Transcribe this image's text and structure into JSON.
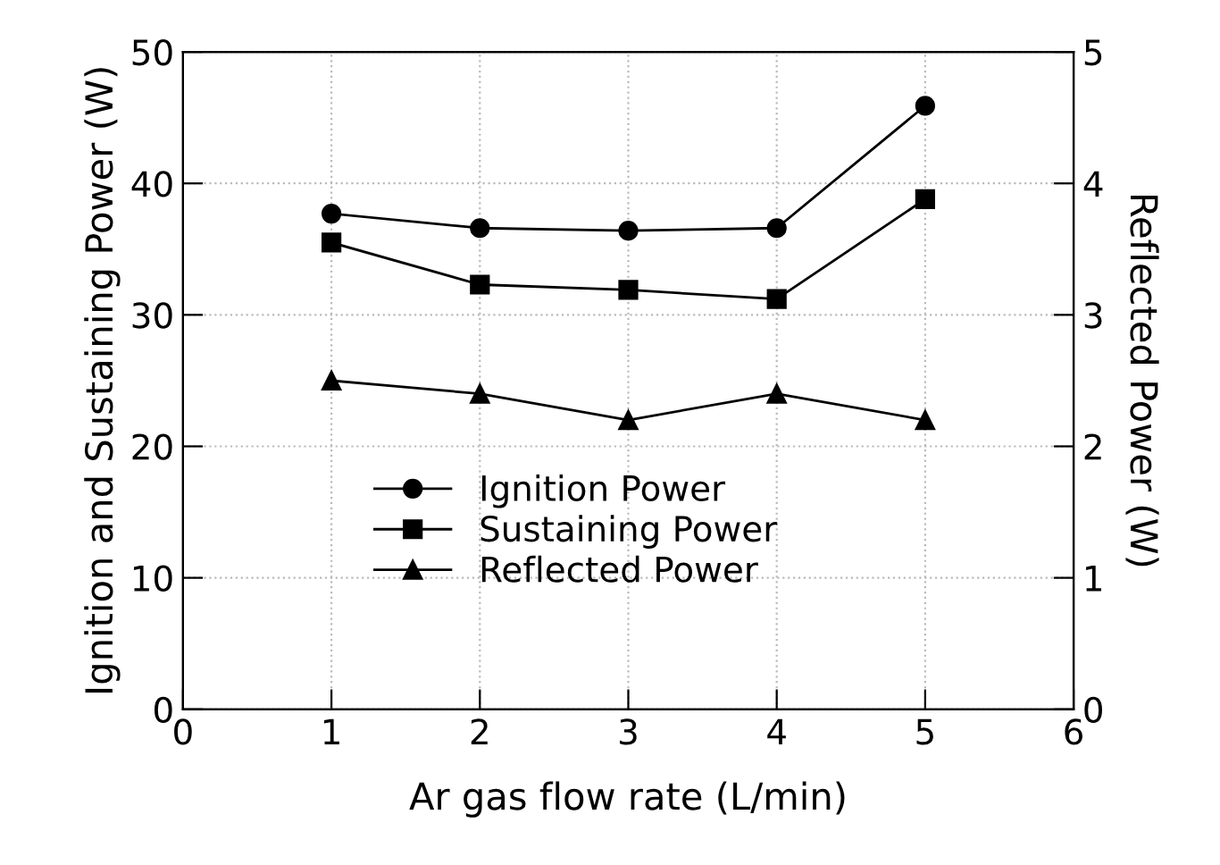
{
  "chart_data": {
    "type": "line",
    "xlabel": "Ar gas flow rate (L/min)",
    "ylabel": "Ignition and Sustaining Power (W)",
    "y2label": "Reflected Power (W)",
    "x": [
      1,
      2,
      3,
      4,
      5
    ],
    "series": [
      {
        "name": "Ignition Power",
        "color": "#000000",
        "marker": "circle",
        "values": [
          37.7,
          36.6,
          36.4,
          36.6,
          45.9
        ]
      },
      {
        "name": "Sustaining Power",
        "color": "#000000",
        "marker": "square",
        "values": [
          35.5,
          32.3,
          31.9,
          31.2,
          38.8
        ]
      },
      {
        "name": "Reflected Power",
        "color": "#000000",
        "marker": "triangle",
        "axis": "y2",
        "values": [
          2.5,
          2.4,
          2.2,
          2.4,
          2.2
        ]
      }
    ],
    "xlim": [
      0,
      6
    ],
    "xticks": [
      0,
      1,
      2,
      3,
      4,
      5,
      6
    ],
    "ylim": [
      0,
      50
    ],
    "yticks": [
      0,
      10,
      20,
      30,
      40,
      50
    ],
    "y2lim": [
      0,
      5
    ],
    "y2ticks": [
      0,
      1,
      2,
      3,
      4,
      5
    ],
    "grid": true,
    "legend": "center left",
    "line_style": "solid"
  }
}
